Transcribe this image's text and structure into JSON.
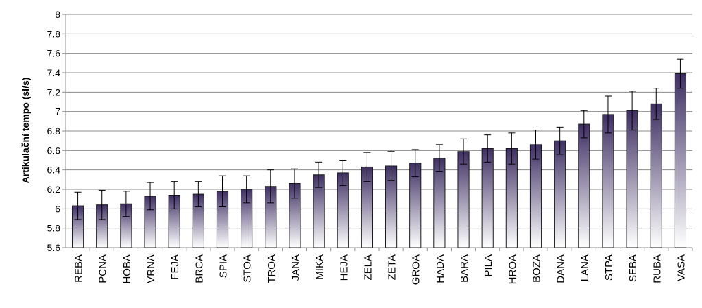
{
  "chart_data": {
    "type": "bar",
    "title": "",
    "xlabel": "",
    "ylabel": "Artikulační tempo (sl/s)",
    "ylim": [
      5.6,
      8.0
    ],
    "yticks": [
      5.6,
      5.8,
      6.0,
      6.2,
      6.4,
      6.6,
      6.8,
      7.0,
      7.2,
      7.4,
      7.6,
      7.8,
      8.0
    ],
    "ytick_labels": [
      "5.6",
      "5.8",
      "6",
      "6.2",
      "6.4",
      "6.6",
      "6.8",
      "7",
      "7.2",
      "7.4",
      "7.6",
      "7.8",
      "8"
    ],
    "grid": true,
    "error_bars": true,
    "bar_color_top": "#3f2f63",
    "bar_color_bottom": "#ffffff",
    "categories": [
      "REBA",
      "PCNA",
      "HOBA",
      "VRNA",
      "FEJA",
      "BRCA",
      "SPIA",
      "STOA",
      "TROA",
      "JANA",
      "MIKA",
      "HEJA",
      "ZELA",
      "ZETA",
      "GROA",
      "HADA",
      "BARA",
      "PILA",
      "HROA",
      "BOZA",
      "DANA",
      "LANA",
      "STPA",
      "SEBA",
      "RUBA",
      "VASA"
    ],
    "values": [
      6.03,
      6.04,
      6.05,
      6.13,
      6.14,
      6.15,
      6.18,
      6.2,
      6.23,
      6.26,
      6.35,
      6.37,
      6.43,
      6.44,
      6.47,
      6.52,
      6.59,
      6.62,
      6.62,
      6.66,
      6.7,
      6.87,
      6.97,
      7.01,
      7.08,
      7.39
    ],
    "errors": [
      0.14,
      0.15,
      0.13,
      0.14,
      0.14,
      0.13,
      0.16,
      0.14,
      0.17,
      0.15,
      0.13,
      0.13,
      0.15,
      0.15,
      0.14,
      0.14,
      0.13,
      0.14,
      0.16,
      0.15,
      0.14,
      0.14,
      0.19,
      0.2,
      0.16,
      0.15
    ]
  }
}
